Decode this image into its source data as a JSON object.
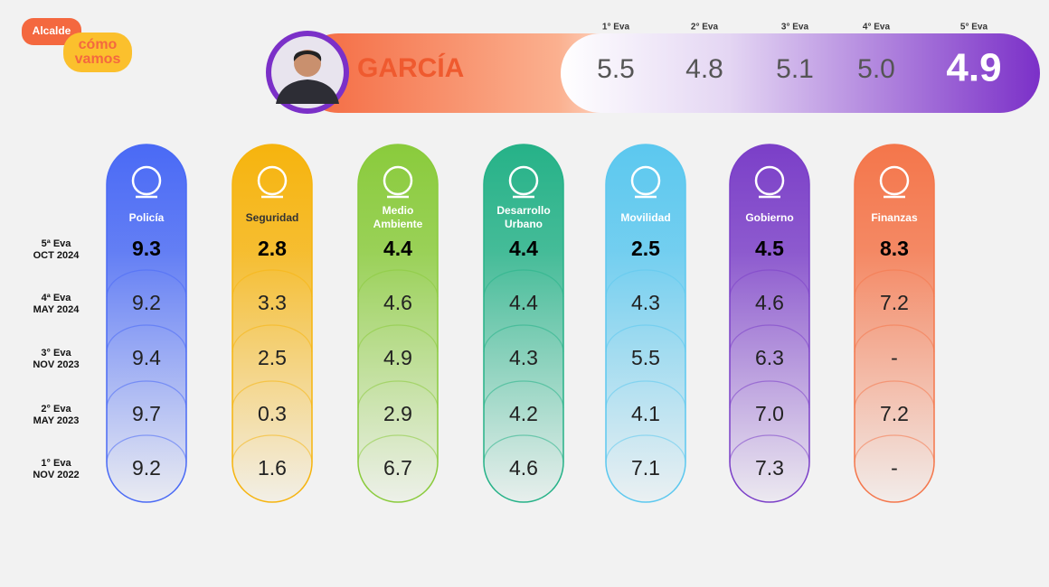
{
  "logo": {
    "top": "Alcalde",
    "brand": [
      "cómo",
      "vamos"
    ]
  },
  "mayor": {
    "name": "GARCÍA",
    "evaluations": [
      {
        "label": "1° Eva",
        "score": "5.5"
      },
      {
        "label": "2° Eva",
        "score": "4.8"
      },
      {
        "label": "3° Eva",
        "score": "5.1"
      },
      {
        "label": "4° Eva",
        "score": "5.0"
      },
      {
        "label": "5° Eva",
        "score": "4.9"
      }
    ]
  },
  "rows": [
    [
      "5ª Eva",
      "OCT 2024"
    ],
    [
      "4ª Eva",
      "MAY 2024"
    ],
    [
      "3° Eva",
      "NOV 2023"
    ],
    [
      "2° Eva",
      "MAY 2023"
    ],
    [
      "1° Eva",
      "NOV  2022"
    ]
  ],
  "columns": [
    {
      "name": [
        "Policía"
      ],
      "color": "#4a6af5",
      "values": [
        "9.3",
        "9.2",
        "9.4",
        "9.7",
        "9.2"
      ]
    },
    {
      "name": [
        "Seguridad"
      ],
      "color": "#f6b40e",
      "values": [
        "2.8",
        "3.3",
        "2.5",
        "0.3",
        "1.6"
      ]
    },
    {
      "name": [
        "Medio",
        "Ambiente"
      ],
      "color": "#8acb3c",
      "values": [
        "4.4",
        "4.6",
        "4.9",
        "2.9",
        "6.7"
      ]
    },
    {
      "name": [
        "Desarrollo",
        "Urbano"
      ],
      "color": "#26b288",
      "values": [
        "4.4",
        "4.4",
        "4.3",
        "4.2",
        "4.6"
      ]
    },
    {
      "name": [
        "Movilidad"
      ],
      "color": "#5cc8ef",
      "values": [
        "2.5",
        "4.3",
        "5.5",
        "4.1",
        "7.1"
      ]
    },
    {
      "name": [
        "Gobierno"
      ],
      "color": "#7b3fc8",
      "values": [
        "4.5",
        "4.6",
        "6.3",
        "7.0",
        "7.3"
      ]
    },
    {
      "name": [
        "Finanzas"
      ],
      "color": "#f4764b",
      "values": [
        "8.3",
        "7.2",
        "-",
        "7.2",
        "-"
      ]
    }
  ]
}
